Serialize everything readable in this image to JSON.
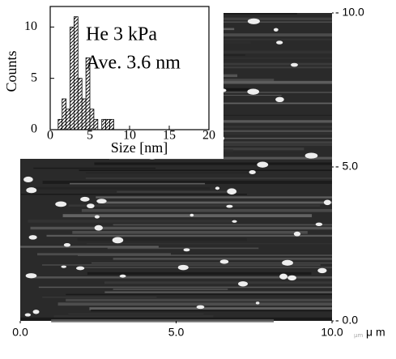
{
  "chart_data": [
    {
      "type": "image",
      "x_unit": "μ m",
      "x_unit_small": "μm",
      "xlim": [
        0,
        10
      ],
      "xticks": [
        {
          "value": 0,
          "label": "0.0"
        },
        {
          "value": 5,
          "label": "5.0"
        },
        {
          "value": 10,
          "label": "10.0"
        }
      ],
      "ylim": [
        0,
        10
      ],
      "yticks": [
        {
          "value": 0,
          "label": "- 0.0"
        },
        {
          "value": 5,
          "label": "- 5.0"
        },
        {
          "value": 10,
          "label": "- 10.0"
        }
      ]
    },
    {
      "type": "histogram",
      "xlabel": "Size [nm]",
      "ylabel": "Counts",
      "annotations": [
        "He  3 kPa",
        "Ave.  3.6 nm"
      ],
      "bins": [
        1,
        1.5,
        2,
        2.5,
        3,
        3.5,
        4,
        4.5,
        5,
        5.5,
        6,
        6.5,
        7,
        7.5,
        8
      ],
      "values": [
        1,
        3,
        2,
        10,
        11,
        5,
        3,
        7,
        2,
        1,
        0,
        1,
        1,
        1
      ],
      "xlim": [
        0,
        20
      ],
      "xticks": [
        0,
        5,
        10,
        15,
        20
      ],
      "ylim": [
        0,
        12
      ],
      "yticks": [
        0,
        5,
        10
      ]
    }
  ]
}
